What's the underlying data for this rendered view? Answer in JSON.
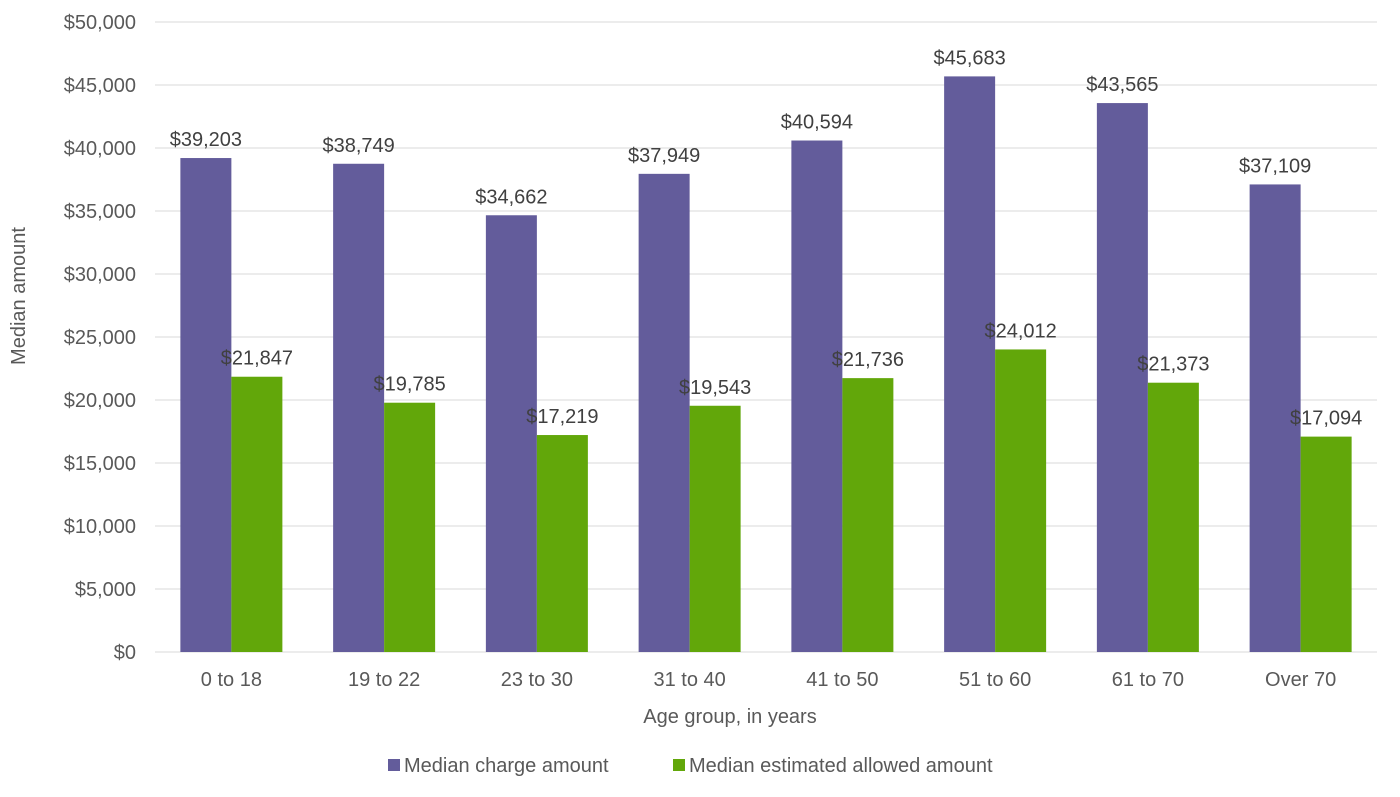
{
  "chart_data": {
    "type": "bar",
    "title": "",
    "xlabel": "Age group, in years",
    "ylabel": "Median amount",
    "ylim": [
      0,
      50000
    ],
    "yticks": [
      0,
      5000,
      10000,
      15000,
      20000,
      25000,
      30000,
      35000,
      40000,
      45000,
      50000
    ],
    "ytick_labels": [
      "$0",
      "$5,000",
      "$10,000",
      "$15,000",
      "$20,000",
      "$25,000",
      "$30,000",
      "$35,000",
      "$40,000",
      "$45,000",
      "$50,000"
    ],
    "categories": [
      "0 to 18",
      "19 to 22",
      "23 to 30",
      "31 to 40",
      "41 to 50",
      "51 to 60",
      "61 to 70",
      "Over 70"
    ],
    "series": [
      {
        "name": "Median charge amount",
        "color": "#635c9b",
        "values": [
          39203,
          38749,
          34662,
          37949,
          40594,
          45683,
          43565,
          37109
        ],
        "labels": [
          "$39,203",
          "$38,749",
          "$34,662",
          "$37,949",
          "$40,594",
          "$45,683",
          "$43,565",
          "$37,109"
        ]
      },
      {
        "name": "Median estimated allowed amount",
        "color": "#62a70a",
        "values": [
          21847,
          19785,
          17219,
          19543,
          21736,
          24012,
          21373,
          17094
        ],
        "labels": [
          "$21,847",
          "$19,785",
          "$17,219",
          "$19,543",
          "$21,736",
          "$24,012",
          "$21,373",
          "$17,094"
        ]
      }
    ],
    "grid": true,
    "legend": "bottom"
  }
}
